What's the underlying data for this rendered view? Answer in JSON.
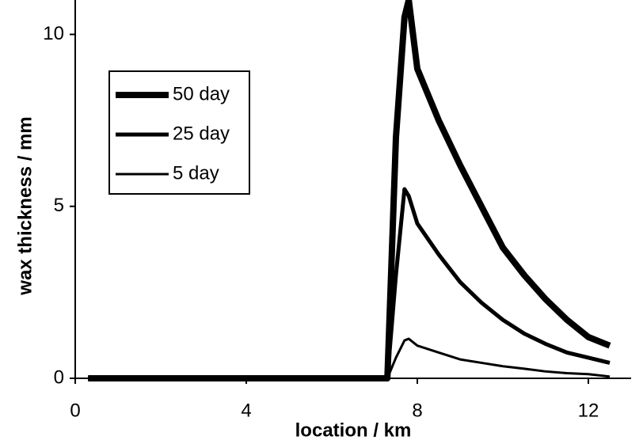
{
  "chart_data": {
    "type": "line",
    "xlabel": "location / km",
    "ylabel": "wax thickness / mm",
    "x": [
      0.3,
      7.3,
      7.5,
      7.7,
      7.8,
      8,
      8.5,
      9,
      9.5,
      10,
      10.5,
      11,
      11.5,
      12,
      12.5
    ],
    "series": [
      {
        "name": "50 day",
        "color": "#000000",
        "width": 8,
        "values": [
          0,
          0,
          7,
          10.5,
          11,
          9.0,
          7.5,
          6.2,
          5.0,
          3.8,
          3.0,
          2.3,
          1.7,
          1.2,
          0.95
        ]
      },
      {
        "name": "25 day",
        "color": "#000000",
        "width": 5,
        "values": [
          0,
          0,
          3,
          5.5,
          5.3,
          4.5,
          3.6,
          2.8,
          2.2,
          1.7,
          1.3,
          1.0,
          0.75,
          0.6,
          0.45
        ]
      },
      {
        "name": "5 day",
        "color": "#000000",
        "width": 3,
        "values": [
          0,
          0,
          0.6,
          1.1,
          1.15,
          0.95,
          0.75,
          0.55,
          0.45,
          0.35,
          0.28,
          0.2,
          0.15,
          0.12,
          0.05
        ]
      }
    ],
    "xlim": [
      0,
      13
    ],
    "ylim": [
      0,
      11
    ],
    "xticks": [
      0,
      4,
      8,
      12
    ],
    "yticks": [
      0,
      5,
      10
    ],
    "grid": false,
    "legend": "upper left"
  }
}
